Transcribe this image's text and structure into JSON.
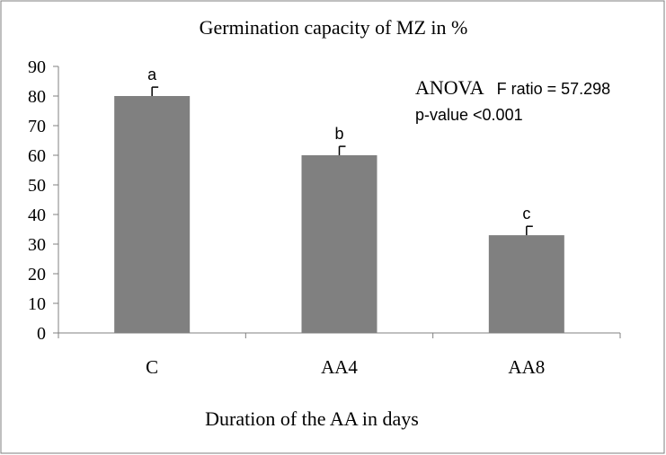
{
  "chart_data": {
    "type": "bar",
    "title": "Germination capacity of MZ in %",
    "xlabel": "Duration of the AA in days",
    "ylabel": "",
    "categories": [
      "C",
      "AA4",
      "AA8"
    ],
    "values": [
      80,
      60,
      33
    ],
    "error_plus": [
      3,
      3,
      3
    ],
    "letters": [
      "a",
      "b",
      "c"
    ],
    "ylim": [
      0,
      90
    ],
    "yticks": [
      0,
      10,
      20,
      30,
      40,
      50,
      60,
      70,
      80,
      90
    ],
    "grid": false,
    "legend": "none",
    "bar_color": "#808080",
    "annotation": {
      "line1_method": "ANOVA",
      "line1_stat": "F ratio = 57.298",
      "line2": "p-value <0.001"
    }
  }
}
